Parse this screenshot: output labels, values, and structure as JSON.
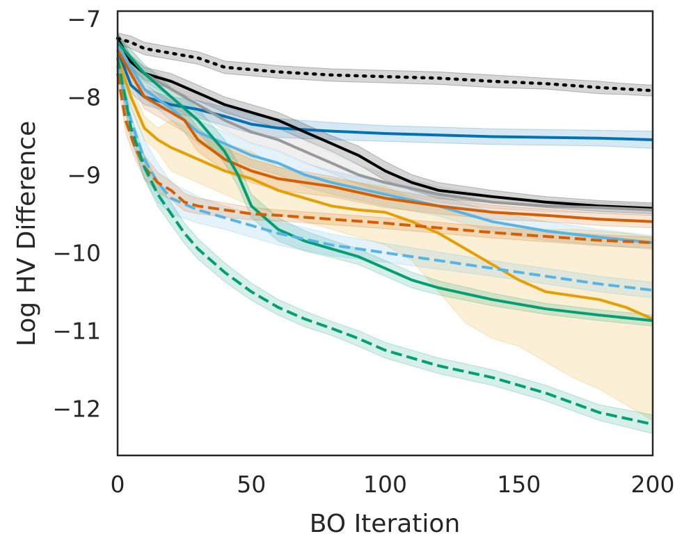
{
  "chart_data": {
    "type": "line",
    "title": "",
    "xlabel": "BO Iteration",
    "ylabel": "Log HV Difference",
    "xlim": [
      0,
      200
    ],
    "ylim": [
      -12.6,
      -6.9
    ],
    "xticks": [
      0,
      50,
      100,
      150,
      200
    ],
    "xtick_labels": [
      "0",
      "50",
      "100",
      "150",
      "200"
    ],
    "yticks": [
      -7,
      -8,
      -9,
      -10,
      -11,
      -12
    ],
    "ytick_labels": [
      "−7",
      "−8",
      "−9",
      "−10",
      "−11",
      "−12"
    ],
    "grid": false,
    "legend": "none",
    "series": [
      {
        "color": "#000000",
        "dash": "dotted",
        "x": [
          0,
          5,
          10,
          20,
          30,
          40,
          50,
          60,
          80,
          100,
          120,
          140,
          160,
          180,
          190,
          200
        ],
        "y": [
          -7.25,
          -7.3,
          -7.38,
          -7.44,
          -7.5,
          -7.62,
          -7.65,
          -7.68,
          -7.72,
          -7.74,
          -7.76,
          -7.8,
          -7.83,
          -7.88,
          -7.9,
          -7.92
        ],
        "band_lo": [
          -7.18,
          -7.22,
          -7.3,
          -7.36,
          -7.42,
          -7.54,
          -7.57,
          -7.6,
          -7.64,
          -7.66,
          -7.68,
          -7.72,
          -7.76,
          -7.8,
          -7.83,
          -7.85
        ],
        "band_hi": [
          -7.32,
          -7.38,
          -7.46,
          -7.52,
          -7.58,
          -7.7,
          -7.73,
          -7.76,
          -7.8,
          -7.82,
          -7.84,
          -7.88,
          -7.9,
          -7.96,
          -7.97,
          -7.99
        ]
      },
      {
        "color": "#0072B2",
        "dash": "solid",
        "x": [
          0,
          5,
          10,
          20,
          30,
          40,
          50,
          60,
          80,
          100,
          120,
          140,
          160,
          180,
          200
        ],
        "y": [
          -7.4,
          -7.85,
          -8.0,
          -8.1,
          -8.16,
          -8.25,
          -8.35,
          -8.4,
          -8.44,
          -8.47,
          -8.49,
          -8.51,
          -8.52,
          -8.53,
          -8.55
        ],
        "band_lo": [
          -7.3,
          -7.75,
          -7.9,
          -8.0,
          -8.05,
          -8.13,
          -8.23,
          -8.28,
          -8.33,
          -8.37,
          -8.39,
          -8.41,
          -8.42,
          -8.43,
          -8.44
        ],
        "band_hi": [
          -7.5,
          -7.95,
          -8.1,
          -8.2,
          -8.27,
          -8.37,
          -8.47,
          -8.52,
          -8.55,
          -8.57,
          -8.59,
          -8.61,
          -8.62,
          -8.63,
          -8.66
        ]
      },
      {
        "color": "#000000",
        "dash": "solid",
        "x": [
          0,
          5,
          10,
          20,
          30,
          40,
          50,
          60,
          70,
          80,
          90,
          100,
          110,
          120,
          140,
          160,
          180,
          200
        ],
        "y": [
          -7.25,
          -7.55,
          -7.7,
          -7.8,
          -7.95,
          -8.1,
          -8.2,
          -8.3,
          -8.45,
          -8.6,
          -8.75,
          -8.95,
          -9.1,
          -9.2,
          -9.28,
          -9.35,
          -9.4,
          -9.43
        ],
        "band_lo": [
          -7.18,
          -7.47,
          -7.62,
          -7.7,
          -7.85,
          -8.0,
          -8.1,
          -8.2,
          -8.35,
          -8.5,
          -8.63,
          -8.83,
          -9.0,
          -9.1,
          -9.2,
          -9.28,
          -9.33,
          -9.36
        ],
        "band_hi": [
          -7.32,
          -7.63,
          -7.78,
          -7.9,
          -8.05,
          -8.2,
          -8.3,
          -8.4,
          -8.55,
          -8.7,
          -8.87,
          -9.07,
          -9.2,
          -9.3,
          -9.36,
          -9.42,
          -9.47,
          -9.5
        ]
      },
      {
        "color": "#999999",
        "dash": "solid",
        "x": [
          0,
          10,
          20,
          30,
          40,
          50,
          60,
          70,
          80,
          90,
          100,
          120,
          140,
          160,
          180,
          200
        ],
        "y": [
          -7.3,
          -7.7,
          -7.9,
          -8.1,
          -8.3,
          -8.45,
          -8.55,
          -8.7,
          -8.85,
          -9.0,
          -9.1,
          -9.25,
          -9.35,
          -9.4,
          -9.42,
          -9.45
        ],
        "band_lo": [
          -7.2,
          -7.6,
          -7.8,
          -7.98,
          -8.17,
          -8.31,
          -8.41,
          -8.56,
          -8.72,
          -8.88,
          -8.98,
          -9.15,
          -9.27,
          -9.33,
          -9.35,
          -9.38
        ],
        "band_hi": [
          -7.4,
          -7.8,
          -8.0,
          -8.22,
          -8.43,
          -8.59,
          -8.69,
          -8.84,
          -8.98,
          -9.12,
          -9.22,
          -9.35,
          -9.43,
          -9.47,
          -9.49,
          -9.52
        ]
      },
      {
        "color": "#56B4E9",
        "dash": "solid",
        "x": [
          0,
          10,
          20,
          30,
          40,
          50,
          60,
          70,
          80,
          100,
          120,
          140,
          160,
          180,
          200
        ],
        "y": [
          -7.35,
          -7.9,
          -8.15,
          -8.45,
          -8.6,
          -8.75,
          -8.85,
          -9.0,
          -9.1,
          -9.25,
          -9.4,
          -9.6,
          -9.72,
          -9.8,
          -9.87
        ],
        "band_lo": [
          -7.25,
          -7.78,
          -8.0,
          -8.3,
          -8.45,
          -8.6,
          -8.7,
          -8.85,
          -8.95,
          -9.1,
          -9.27,
          -9.47,
          -9.6,
          -9.7,
          -9.78
        ],
        "band_hi": [
          -7.45,
          -8.02,
          -8.3,
          -8.6,
          -8.75,
          -8.9,
          -9.0,
          -9.15,
          -9.25,
          -9.4,
          -9.53,
          -9.73,
          -9.84,
          -9.9,
          -9.96
        ]
      },
      {
        "color": "#D55E00",
        "dash": "solid",
        "x": [
          0,
          5,
          10,
          20,
          25,
          30,
          40,
          50,
          60,
          80,
          100,
          120,
          140,
          160,
          180,
          200
        ],
        "y": [
          -7.4,
          -7.7,
          -8.0,
          -8.2,
          -8.3,
          -8.55,
          -8.8,
          -8.95,
          -9.05,
          -9.15,
          -9.3,
          -9.4,
          -9.48,
          -9.52,
          -9.57,
          -9.6
        ],
        "band_lo": [
          -7.3,
          -7.58,
          -7.85,
          -8.05,
          -8.15,
          -8.4,
          -8.65,
          -8.8,
          -8.9,
          -9.02,
          -9.18,
          -9.3,
          -9.39,
          -9.44,
          -9.49,
          -9.52
        ],
        "band_hi": [
          -7.5,
          -7.82,
          -8.15,
          -8.35,
          -8.45,
          -8.7,
          -8.95,
          -9.1,
          -9.2,
          -9.28,
          -9.42,
          -9.5,
          -9.57,
          -9.6,
          -9.65,
          -9.68
        ]
      },
      {
        "color": "#E69F00",
        "dash": "solid",
        "x": [
          0,
          5,
          10,
          15,
          20,
          30,
          40,
          50,
          60,
          70,
          80,
          90,
          100,
          110,
          120,
          130,
          140,
          150,
          160,
          170,
          180,
          190,
          200
        ],
        "y": [
          -7.5,
          -8.0,
          -8.4,
          -8.55,
          -8.65,
          -8.8,
          -8.95,
          -9.05,
          -9.2,
          -9.3,
          -9.4,
          -9.45,
          -9.48,
          -9.6,
          -9.75,
          -9.95,
          -10.15,
          -10.35,
          -10.5,
          -10.55,
          -10.6,
          -10.7,
          -10.85
        ],
        "band_lo": [
          -7.35,
          -7.85,
          -8.25,
          -8.4,
          -8.3,
          -8.45,
          -8.6,
          -8.7,
          -8.9,
          -9.0,
          -9.05,
          -9.1,
          -9.15,
          -9.3,
          -9.4,
          -9.5,
          -9.6,
          -9.65,
          -9.7,
          -9.7,
          -9.72,
          -9.75,
          -9.8
        ],
        "band_hi": [
          -7.65,
          -8.15,
          -8.55,
          -8.7,
          -8.95,
          -9.1,
          -9.25,
          -9.4,
          -9.5,
          -9.6,
          -9.7,
          -9.8,
          -9.9,
          -10.1,
          -10.5,
          -10.9,
          -11.1,
          -11.2,
          -11.4,
          -11.6,
          -11.75,
          -11.95,
          -12.15
        ]
      },
      {
        "color": "#009E73",
        "dash": "solid",
        "x": [
          0,
          10,
          20,
          30,
          40,
          45,
          50,
          60,
          70,
          80,
          90,
          100,
          110,
          120,
          140,
          160,
          180,
          200
        ],
        "y": [
          -7.3,
          -7.7,
          -8.0,
          -8.3,
          -8.7,
          -9.0,
          -9.4,
          -9.7,
          -9.85,
          -9.95,
          -10.05,
          -10.2,
          -10.35,
          -10.45,
          -10.6,
          -10.72,
          -10.8,
          -10.87
        ],
        "band_lo": [
          -7.2,
          -7.58,
          -7.88,
          -8.15,
          -8.55,
          -8.85,
          -9.25,
          -9.55,
          -9.72,
          -9.84,
          -9.95,
          -10.1,
          -10.25,
          -10.36,
          -10.52,
          -10.65,
          -10.73,
          -10.8
        ],
        "band_hi": [
          -7.4,
          -7.82,
          -8.12,
          -8.45,
          -8.85,
          -9.15,
          -9.55,
          -9.85,
          -9.98,
          -10.06,
          -10.15,
          -10.3,
          -10.45,
          -10.54,
          -10.68,
          -10.79,
          -10.87,
          -10.94
        ]
      },
      {
        "color": "#56B4E9",
        "dash": "dashed",
        "x": [
          0,
          5,
          10,
          15,
          20,
          30,
          40,
          50,
          60,
          80,
          100,
          120,
          140,
          160,
          180,
          200
        ],
        "y": [
          -7.6,
          -8.3,
          -8.8,
          -9.1,
          -9.3,
          -9.45,
          -9.55,
          -9.65,
          -9.75,
          -9.9,
          -10.0,
          -10.1,
          -10.2,
          -10.3,
          -10.4,
          -10.48
        ],
        "band_lo": [
          -7.45,
          -8.1,
          -8.55,
          -8.85,
          -9.1,
          -9.28,
          -9.4,
          -9.5,
          -9.6,
          -9.76,
          -9.88,
          -9.99,
          -10.1,
          -10.2,
          -10.3,
          -10.38
        ],
        "band_hi": [
          -7.75,
          -8.5,
          -9.05,
          -9.35,
          -9.5,
          -9.62,
          -9.7,
          -9.8,
          -9.9,
          -10.04,
          -10.12,
          -10.21,
          -10.3,
          -10.4,
          -10.5,
          -10.58
        ]
      },
      {
        "color": "#D55E00",
        "dash": "dashed",
        "x": [
          0,
          3,
          6,
          10,
          15,
          20,
          25,
          30,
          40,
          50,
          60,
          80,
          100,
          120,
          140,
          160,
          180,
          200
        ],
        "y": [
          -7.7,
          -8.3,
          -8.6,
          -8.9,
          -9.1,
          -9.2,
          -9.35,
          -9.4,
          -9.45,
          -9.5,
          -9.52,
          -9.57,
          -9.62,
          -9.68,
          -9.74,
          -9.79,
          -9.84,
          -9.87
        ],
        "band_lo": [
          -7.6,
          -8.15,
          -8.45,
          -8.75,
          -8.97,
          -9.08,
          -9.24,
          -9.3,
          -9.36,
          -9.42,
          -9.45,
          -9.5,
          -9.55,
          -9.61,
          -9.67,
          -9.72,
          -9.77,
          -9.8
        ],
        "band_hi": [
          -7.8,
          -8.45,
          -8.75,
          -9.05,
          -9.23,
          -9.32,
          -9.46,
          -9.5,
          -9.54,
          -9.58,
          -9.59,
          -9.64,
          -9.69,
          -9.75,
          -9.81,
          -9.86,
          -9.91,
          -9.94
        ]
      },
      {
        "color": "#009E73",
        "dash": "dashed",
        "x": [
          0,
          5,
          10,
          15,
          20,
          25,
          30,
          40,
          50,
          60,
          70,
          80,
          90,
          100,
          120,
          140,
          160,
          180,
          200
        ],
        "y": [
          -7.5,
          -8.4,
          -8.9,
          -9.25,
          -9.5,
          -9.75,
          -9.95,
          -10.25,
          -10.5,
          -10.7,
          -10.85,
          -10.97,
          -11.1,
          -11.25,
          -11.45,
          -11.6,
          -11.8,
          -12.05,
          -12.2
        ],
        "band_lo": [
          -7.38,
          -8.25,
          -8.75,
          -9.1,
          -9.36,
          -9.62,
          -9.82,
          -10.13,
          -10.39,
          -10.6,
          -10.75,
          -10.88,
          -11.0,
          -11.15,
          -11.35,
          -11.5,
          -11.7,
          -11.95,
          -12.08
        ],
        "band_hi": [
          -7.62,
          -8.55,
          -9.05,
          -9.4,
          -9.64,
          -9.88,
          -10.08,
          -10.37,
          -10.61,
          -10.8,
          -10.95,
          -11.06,
          -11.2,
          -11.35,
          -11.55,
          -11.7,
          -11.9,
          -12.15,
          -12.32
        ]
      }
    ]
  }
}
